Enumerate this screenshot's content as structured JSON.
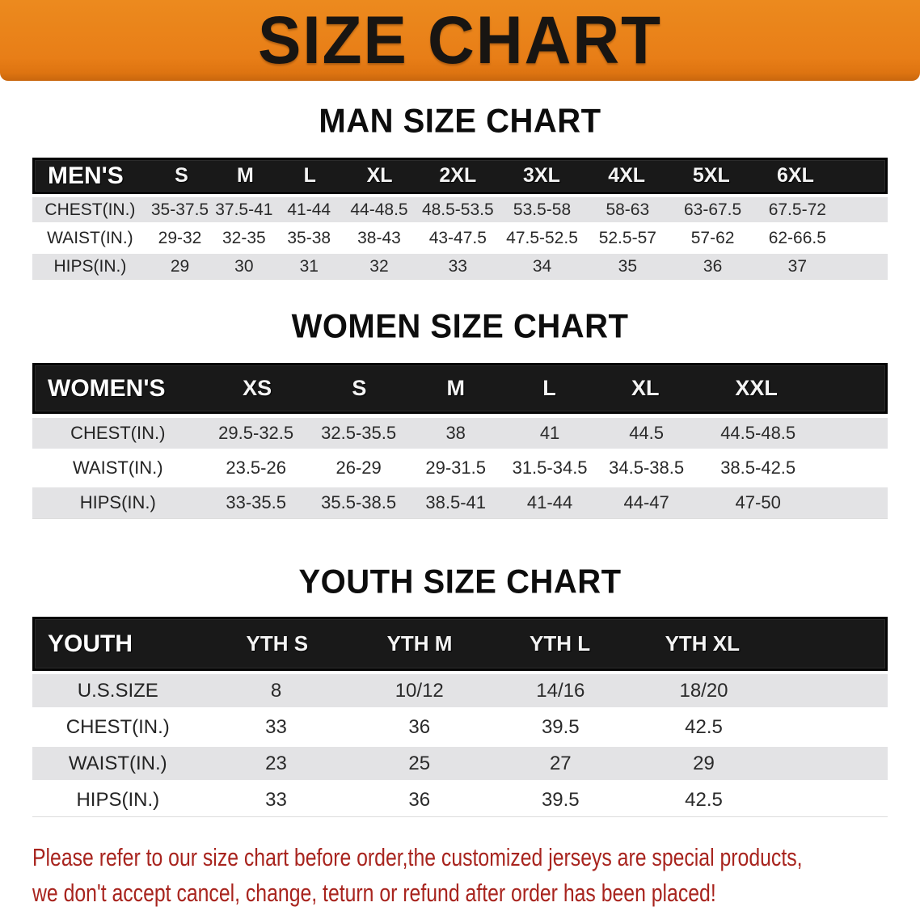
{
  "banner": {
    "title": "SIZE CHART",
    "bg_color": "#E87E17",
    "text_color": "#181512"
  },
  "sections": [
    {
      "heading": "MAN SIZE CHART",
      "table": {
        "header_label": "MEN'S",
        "columns": [
          "S",
          "M",
          "L",
          "XL",
          "2XL",
          "3XL",
          "4XL",
          "5XL",
          "6XL"
        ],
        "rows": [
          {
            "label": "CHEST(IN.)",
            "values": [
              "35-37.5",
              "37.5-41",
              "41-44",
              "44-48.5",
              "48.5-53.5",
              "53.5-58",
              "58-63",
              "63-67.5",
              "67.5-72"
            ]
          },
          {
            "label": "WAIST(IN.)",
            "values": [
              "29-32",
              "32-35",
              "35-38",
              "38-43",
              "43-47.5",
              "47.5-52.5",
              "52.5-57",
              "57-62",
              "62-66.5"
            ]
          },
          {
            "label": "HIPS(IN.)",
            "values": [
              "29",
              "30",
              "31",
              "32",
              "33",
              "34",
              "35",
              "36",
              "37"
            ]
          }
        ]
      }
    },
    {
      "heading": "WOMEN SIZE CHART",
      "table": {
        "header_label": "WOMEN'S",
        "columns": [
          "XS",
          "S",
          "M",
          "L",
          "XL",
          "XXL"
        ],
        "rows": [
          {
            "label": "CHEST(IN.)",
            "values": [
              "29.5-32.5",
              "32.5-35.5",
              "38",
              "41",
              "44.5",
              "44.5-48.5"
            ]
          },
          {
            "label": "WAIST(IN.)",
            "values": [
              "23.5-26",
              "26-29",
              "29-31.5",
              "31.5-34.5",
              "34.5-38.5",
              "38.5-42.5"
            ]
          },
          {
            "label": "HIPS(IN.)",
            "values": [
              "33-35.5",
              "35.5-38.5",
              "38.5-41",
              "41-44",
              "44-47",
              "47-50"
            ]
          }
        ]
      }
    },
    {
      "heading": "YOUTH SIZE CHART",
      "table": {
        "header_label": "YOUTH",
        "columns": [
          "YTH S",
          "YTH M",
          "YTH L",
          "YTH XL"
        ],
        "rows": [
          {
            "label": "U.S.SIZE",
            "values": [
              "8",
              "10/12",
              "14/16",
              "18/20"
            ]
          },
          {
            "label": "CHEST(IN.)",
            "values": [
              "33",
              "36",
              "39.5",
              "42.5"
            ]
          },
          {
            "label": "WAIST(IN.)",
            "values": [
              "23",
              "25",
              "27",
              "29"
            ]
          },
          {
            "label": "HIPS(IN.)",
            "values": [
              "33",
              "36",
              "39.5",
              "42.5"
            ]
          }
        ]
      }
    }
  ],
  "footer": {
    "line1": "Please refer to our size chart before order,the customized jerseys are special products,",
    "line2": "we don't accept cancel, change, teturn or refund after order has been placed!",
    "text_color": "#A8241E"
  }
}
